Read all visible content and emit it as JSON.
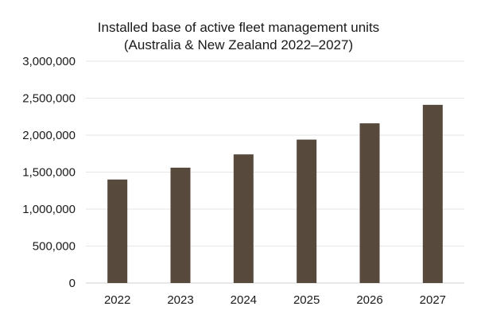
{
  "chart_data": {
    "type": "bar",
    "title_lines": [
      "Installed base of active fleet management units",
      "(Australia & New Zealand 2022–2027)"
    ],
    "categories": [
      "2022",
      "2023",
      "2024",
      "2025",
      "2026",
      "2027"
    ],
    "values": [
      1400000,
      1560000,
      1740000,
      1940000,
      2160000,
      2410000
    ],
    "ylim": [
      0,
      3000000
    ],
    "yticks": [
      0,
      500000,
      1000000,
      1500000,
      2000000,
      2500000,
      3000000
    ],
    "ytick_labels": [
      "0",
      "500,000",
      "1,000,000",
      "1,500,000",
      "2,000,000",
      "2,500,000",
      "3,000,000"
    ],
    "xlabel": "",
    "ylabel": "",
    "grid": true,
    "bar_color": "#574a3c"
  }
}
